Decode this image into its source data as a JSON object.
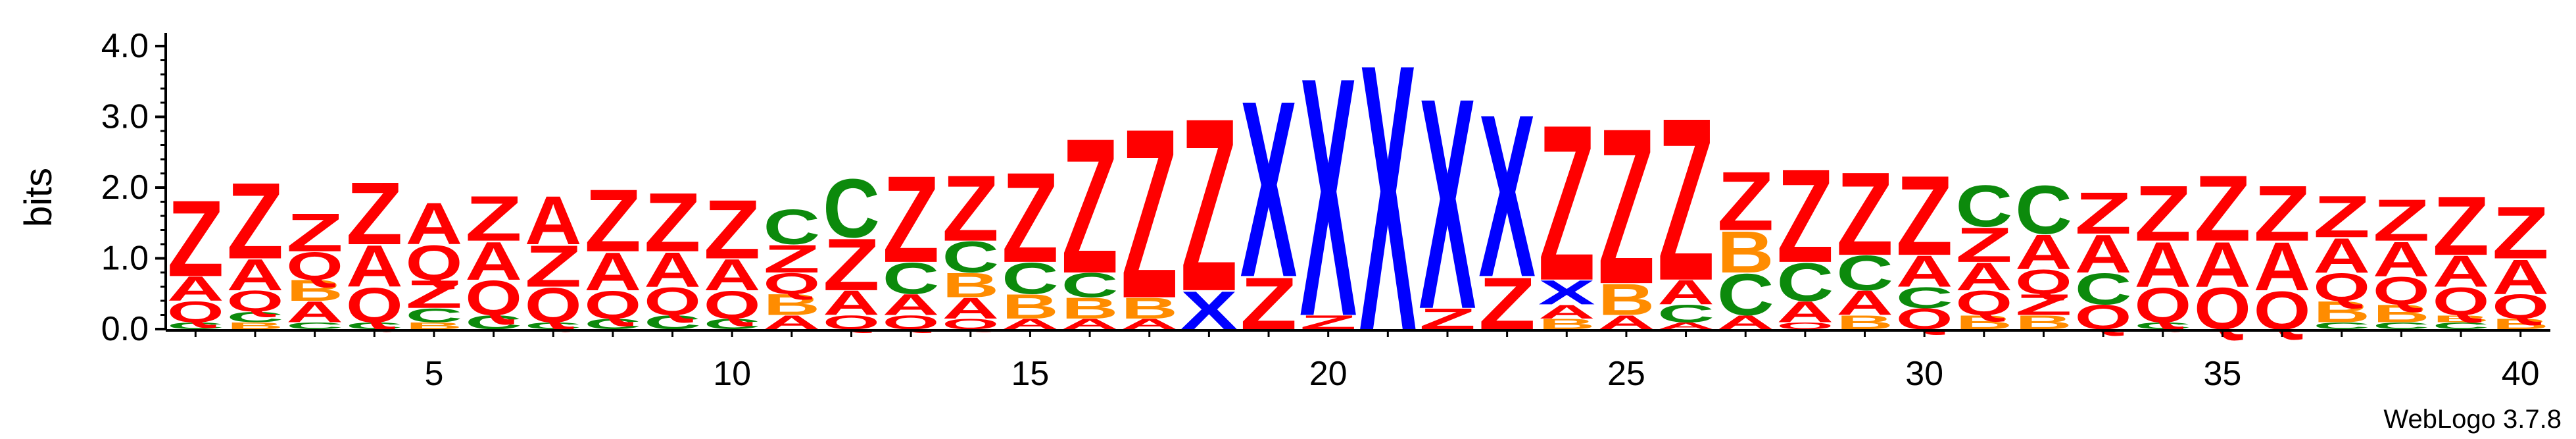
{
  "chart_data": {
    "type": "sequence-logo",
    "ylabel": "bits",
    "xlabel": "",
    "ylim": [
      0,
      4.0
    ],
    "y_ticks": [
      "0.0",
      "1.0",
      "2.0",
      "3.0",
      "4.0"
    ],
    "x_ticks": [
      "5",
      "10",
      "15",
      "20",
      "25",
      "30",
      "35",
      "40"
    ],
    "x_range": [
      1,
      40
    ],
    "footer": "WebLogo 3.7.8",
    "colors": {
      "Z": "#ff0000",
      "A": "#ff0000",
      "Q": "#ff0000",
      "X": "#0000ff",
      "C": "#0c8a0c",
      "B": "#ff8c00"
    },
    "stacks": [
      {
        "pos": 1,
        "letters": [
          {
            "c": "C",
            "h": 0.1
          },
          {
            "c": "Q",
            "h": 0.3
          },
          {
            "c": "A",
            "h": 0.35
          },
          {
            "c": "Z",
            "h": 1.1
          }
        ]
      },
      {
        "pos": 2,
        "letters": [
          {
            "c": "B",
            "h": 0.1
          },
          {
            "c": "C",
            "h": 0.15
          },
          {
            "c": "Q",
            "h": 0.3
          },
          {
            "c": "A",
            "h": 0.45
          },
          {
            "c": "Z",
            "h": 1.1
          }
        ]
      },
      {
        "pos": 3,
        "letters": [
          {
            "c": "C",
            "h": 0.1
          },
          {
            "c": "A",
            "h": 0.3
          },
          {
            "c": "B",
            "h": 0.3
          },
          {
            "c": "Q",
            "h": 0.4
          },
          {
            "c": "Z",
            "h": 0.55
          }
        ]
      },
      {
        "pos": 4,
        "letters": [
          {
            "c": "C",
            "h": 0.1
          },
          {
            "c": "Q",
            "h": 0.5
          },
          {
            "c": "A",
            "h": 0.6
          },
          {
            "c": "Z",
            "h": 0.9
          }
        ]
      },
      {
        "pos": 5,
        "letters": [
          {
            "c": "B",
            "h": 0.1
          },
          {
            "c": "C",
            "h": 0.2
          },
          {
            "c": "Z",
            "h": 0.4
          },
          {
            "c": "Q",
            "h": 0.5
          },
          {
            "c": "A",
            "h": 0.6
          }
        ]
      },
      {
        "pos": 6,
        "letters": [
          {
            "c": "C",
            "h": 0.2
          },
          {
            "c": "Q",
            "h": 0.5
          },
          {
            "c": "A",
            "h": 0.55
          },
          {
            "c": "Z",
            "h": 0.65
          }
        ]
      },
      {
        "pos": 7,
        "letters": [
          {
            "c": "C",
            "h": 0.1
          },
          {
            "c": "Q",
            "h": 0.5
          },
          {
            "c": "Z",
            "h": 0.6
          },
          {
            "c": "A",
            "h": 0.7
          }
        ]
      },
      {
        "pos": 8,
        "letters": [
          {
            "c": "C",
            "h": 0.15
          },
          {
            "c": "Q",
            "h": 0.4
          },
          {
            "c": "A",
            "h": 0.55
          },
          {
            "c": "Z",
            "h": 0.9
          }
        ]
      },
      {
        "pos": 9,
        "letters": [
          {
            "c": "C",
            "h": 0.2
          },
          {
            "c": "Q",
            "h": 0.4
          },
          {
            "c": "A",
            "h": 0.5
          },
          {
            "c": "Z",
            "h": 0.85
          }
        ]
      },
      {
        "pos": 10,
        "letters": [
          {
            "c": "C",
            "h": 0.15
          },
          {
            "c": "Q",
            "h": 0.4
          },
          {
            "c": "A",
            "h": 0.45
          },
          {
            "c": "Z",
            "h": 0.85
          }
        ]
      },
      {
        "pos": 11,
        "letters": [
          {
            "c": "A",
            "h": 0.2
          },
          {
            "c": "B",
            "h": 0.3
          },
          {
            "c": "Q",
            "h": 0.3
          },
          {
            "c": "Z",
            "h": 0.4
          },
          {
            "c": "C",
            "h": 0.5
          }
        ]
      },
      {
        "pos": 12,
        "letters": [
          {
            "c": "Q",
            "h": 0.2
          },
          {
            "c": "A",
            "h": 0.35
          },
          {
            "c": "Z",
            "h": 0.75
          },
          {
            "c": "C",
            "h": 0.85
          }
        ]
      },
      {
        "pos": 13,
        "letters": [
          {
            "c": "Q",
            "h": 0.2
          },
          {
            "c": "A",
            "h": 0.3
          },
          {
            "c": "C",
            "h": 0.45
          },
          {
            "c": "Z",
            "h": 1.25
          }
        ]
      },
      {
        "pos": 14,
        "letters": [
          {
            "c": "Q",
            "h": 0.15
          },
          {
            "c": "A",
            "h": 0.3
          },
          {
            "c": "B",
            "h": 0.35
          },
          {
            "c": "C",
            "h": 0.45
          },
          {
            "c": "Z",
            "h": 0.95
          }
        ]
      },
      {
        "pos": 15,
        "letters": [
          {
            "c": "A",
            "h": 0.15
          },
          {
            "c": "B",
            "h": 0.35
          },
          {
            "c": "C",
            "h": 0.45
          },
          {
            "c": "Z",
            "h": 1.3
          }
        ]
      },
      {
        "pos": 16,
        "letters": [
          {
            "c": "A",
            "h": 0.15
          },
          {
            "c": "B",
            "h": 0.3
          },
          {
            "c": "C",
            "h": 0.35
          },
          {
            "c": "Z",
            "h": 1.95
          }
        ]
      },
      {
        "pos": 17,
        "letters": [
          {
            "c": "A",
            "h": 0.15
          },
          {
            "c": "B",
            "h": 0.3
          },
          {
            "c": "Z",
            "h": 2.45
          }
        ]
      },
      {
        "pos": 18,
        "letters": [
          {
            "c": "X",
            "h": 0.55
          },
          {
            "c": "Z",
            "h": 2.5
          }
        ]
      },
      {
        "pos": 19,
        "letters": [
          {
            "c": "Z",
            "h": 0.75
          },
          {
            "c": "X",
            "h": 2.55
          }
        ]
      },
      {
        "pos": 20,
        "letters": [
          {
            "c": "Z",
            "h": 0.2
          },
          {
            "c": "X",
            "h": 3.45
          }
        ]
      },
      {
        "pos": 21,
        "letters": [
          {
            "c": "X",
            "h": 3.85
          }
        ]
      },
      {
        "pos": 22,
        "letters": [
          {
            "c": "Z",
            "h": 0.3
          },
          {
            "c": "X",
            "h": 3.05
          }
        ]
      },
      {
        "pos": 23,
        "letters": [
          {
            "c": "Z",
            "h": 0.75
          },
          {
            "c": "X",
            "h": 2.35
          }
        ]
      },
      {
        "pos": 24,
        "letters": [
          {
            "c": "B",
            "h": 0.15
          },
          {
            "c": "A",
            "h": 0.2
          },
          {
            "c": "X",
            "h": 0.35
          },
          {
            "c": "Z",
            "h": 2.25
          }
        ]
      },
      {
        "pos": 25,
        "letters": [
          {
            "c": "A",
            "h": 0.2
          },
          {
            "c": "B",
            "h": 0.45
          },
          {
            "c": "Z",
            "h": 2.25
          }
        ]
      },
      {
        "pos": 26,
        "letters": [
          {
            "c": "A",
            "h": 0.1
          },
          {
            "c": "C",
            "h": 0.25
          },
          {
            "c": "A",
            "h": 0.35
          },
          {
            "c": "Z",
            "h": 2.35
          }
        ]
      },
      {
        "pos": 27,
        "letters": [
          {
            "c": "A",
            "h": 0.2
          },
          {
            "c": "C",
            "h": 0.6
          },
          {
            "c": "B",
            "h": 0.6
          },
          {
            "c": "Z",
            "h": 0.85
          }
        ]
      },
      {
        "pos": 28,
        "letters": [
          {
            "c": "Q",
            "h": 0.1
          },
          {
            "c": "A",
            "h": 0.3
          },
          {
            "c": "C",
            "h": 0.55
          },
          {
            "c": "Z",
            "h": 1.35
          }
        ]
      },
      {
        "pos": 29,
        "letters": [
          {
            "c": "B",
            "h": 0.2
          },
          {
            "c": "A",
            "h": 0.35
          },
          {
            "c": "C",
            "h": 0.5
          },
          {
            "c": "Z",
            "h": 1.2
          }
        ]
      },
      {
        "pos": 30,
        "letters": [
          {
            "c": "Q",
            "h": 0.3
          },
          {
            "c": "C",
            "h": 0.3
          },
          {
            "c": "A",
            "h": 0.45
          },
          {
            "c": "Z",
            "h": 1.15
          }
        ]
      },
      {
        "pos": 31,
        "letters": [
          {
            "c": "B",
            "h": 0.2
          },
          {
            "c": "Q",
            "h": 0.35
          },
          {
            "c": "A",
            "h": 0.4
          },
          {
            "c": "Z",
            "h": 0.5
          },
          {
            "c": "C",
            "h": 0.6
          }
        ]
      },
      {
        "pos": 32,
        "letters": [
          {
            "c": "B",
            "h": 0.2
          },
          {
            "c": "Z",
            "h": 0.3
          },
          {
            "c": "Q",
            "h": 0.35
          },
          {
            "c": "A",
            "h": 0.5
          },
          {
            "c": "C",
            "h": 0.7
          }
        ]
      },
      {
        "pos": 33,
        "letters": [
          {
            "c": "Q",
            "h": 0.35
          },
          {
            "c": "C",
            "h": 0.45
          },
          {
            "c": "A",
            "h": 0.55
          },
          {
            "c": "Z",
            "h": 0.6
          }
        ]
      },
      {
        "pos": 34,
        "letters": [
          {
            "c": "C",
            "h": 0.1
          },
          {
            "c": "Q",
            "h": 0.5
          },
          {
            "c": "A",
            "h": 0.65
          },
          {
            "c": "Z",
            "h": 0.8
          }
        ]
      },
      {
        "pos": 35,
        "letters": [
          {
            "c": "Q",
            "h": 0.6
          },
          {
            "c": "A",
            "h": 0.65
          },
          {
            "c": "Z",
            "h": 0.95
          }
        ]
      },
      {
        "pos": 36,
        "letters": [
          {
            "c": "Q",
            "h": 0.55
          },
          {
            "c": "A",
            "h": 0.7
          },
          {
            "c": "Z",
            "h": 0.8
          }
        ]
      },
      {
        "pos": 37,
        "letters": [
          {
            "c": "C",
            "h": 0.1
          },
          {
            "c": "B",
            "h": 0.3
          },
          {
            "c": "Q",
            "h": 0.4
          },
          {
            "c": "A",
            "h": 0.5
          },
          {
            "c": "Z",
            "h": 0.6
          }
        ]
      },
      {
        "pos": 38,
        "letters": [
          {
            "c": "C",
            "h": 0.1
          },
          {
            "c": "B",
            "h": 0.25
          },
          {
            "c": "Q",
            "h": 0.4
          },
          {
            "c": "A",
            "h": 0.5
          },
          {
            "c": "Z",
            "h": 0.6
          }
        ]
      },
      {
        "pos": 39,
        "letters": [
          {
            "c": "C",
            "h": 0.1
          },
          {
            "c": "B",
            "h": 0.1
          },
          {
            "c": "Q",
            "h": 0.4
          },
          {
            "c": "A",
            "h": 0.45
          },
          {
            "c": "Z",
            "h": 0.85
          }
        ]
      },
      {
        "pos": 40,
        "letters": [
          {
            "c": "B",
            "h": 0.15
          },
          {
            "c": "Q",
            "h": 0.35
          },
          {
            "c": "A",
            "h": 0.5
          },
          {
            "c": "Z",
            "h": 0.75
          }
        ]
      }
    ]
  }
}
